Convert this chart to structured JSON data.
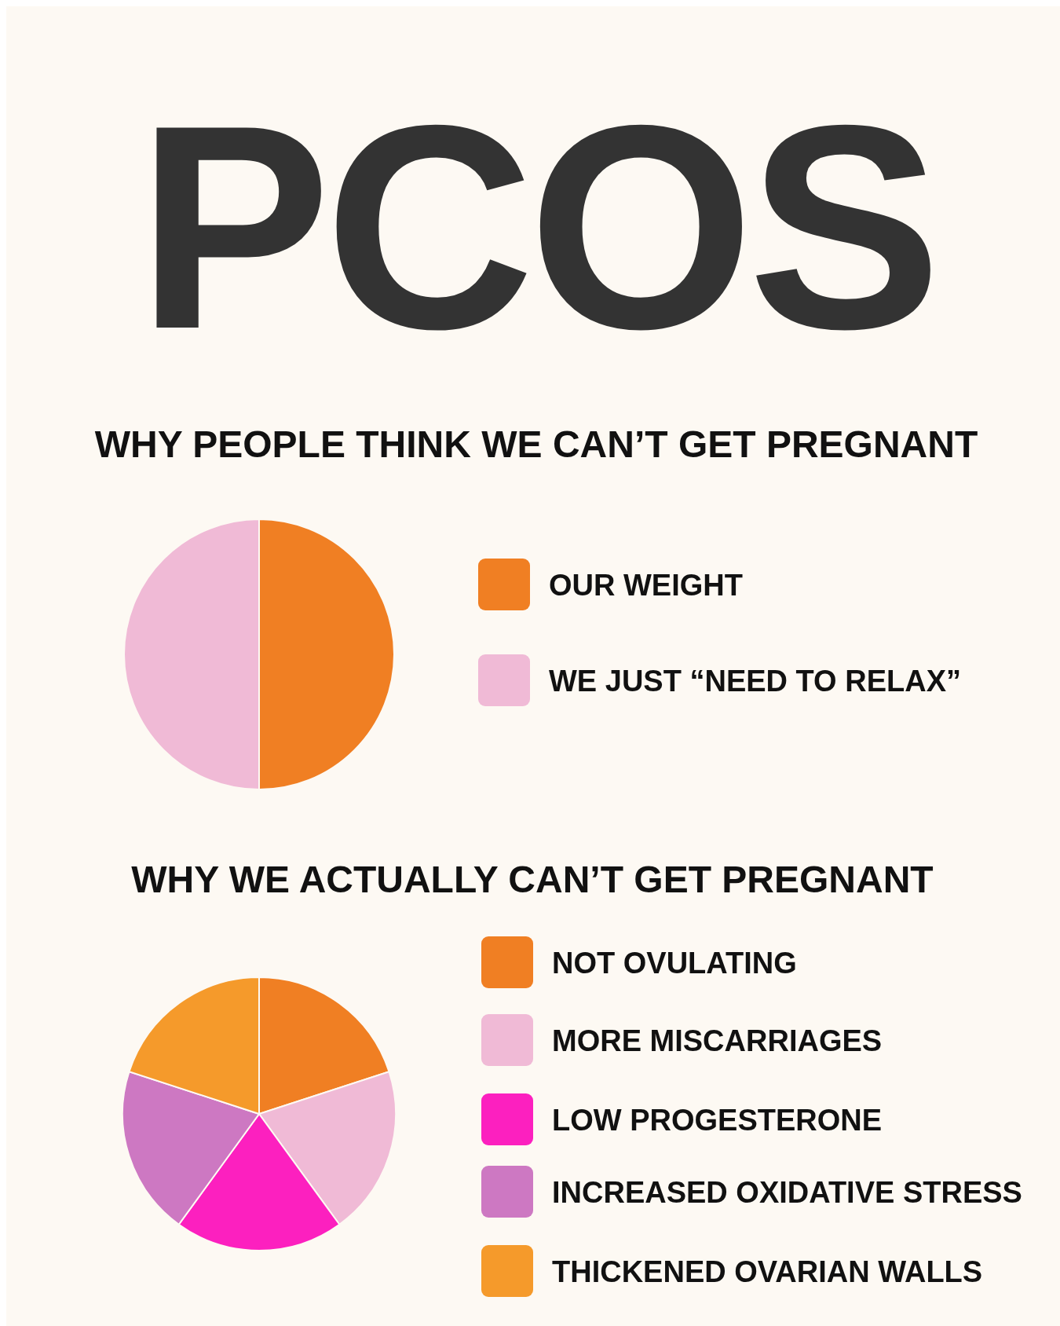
{
  "chart_data": [
    {
      "type": "pie",
      "title": "PCOS",
      "subtitle": "WHY PEOPLE THINK WE CAN’T GET PREGNANT",
      "categories": [
        "OUR WEIGHT",
        "WE JUST “NEED TO RELAX”"
      ],
      "values": [
        50,
        50
      ],
      "colors": [
        "#f07f23",
        "#f0bad6"
      ],
      "legend": "right"
    },
    {
      "type": "pie",
      "title": "WHY WE ACTUALLY CAN’T GET PREGNANT",
      "categories": [
        "NOT OVULATING",
        "MORE MISCARRIAGES",
        "LOW PROGESTERONE",
        "INCREASED OXIDATIVE STRESS",
        "THICKENED OVARIAN WALLS"
      ],
      "values": [
        20,
        20,
        20,
        20,
        20
      ],
      "colors": [
        "#f07f23",
        "#f0bad6",
        "#fc20bf",
        "#cd78c2",
        "#f59a2b"
      ],
      "legend": "right"
    }
  ]
}
